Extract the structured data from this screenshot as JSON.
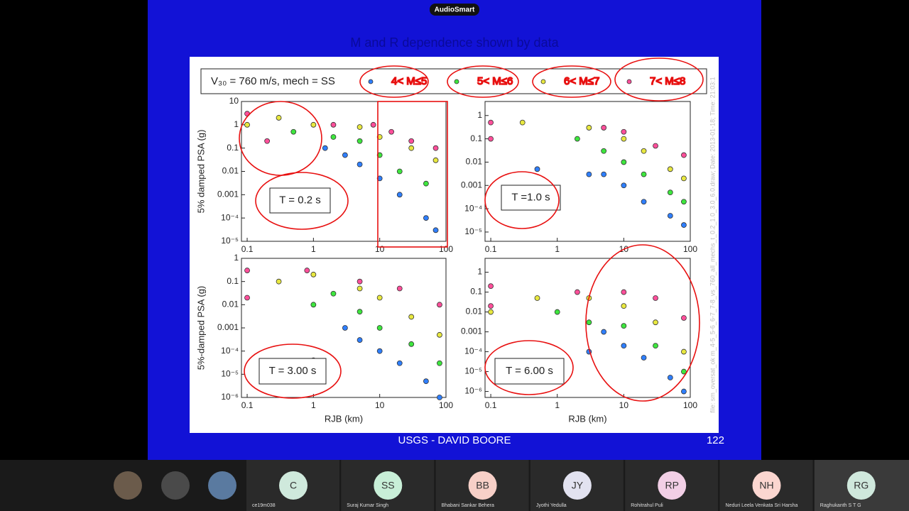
{
  "badge": "AudioSmart",
  "slide": {
    "title": "M and R dependence shown by data",
    "legend": {
      "title": "V₃₀ = 760 m/s, mech = SS",
      "entries": [
        "4< M≤5",
        "5< M≤6",
        "6< M≤7",
        "7< M≤8"
      ]
    },
    "side_note": "file: sm_oversat_ok m_4-5_5-6_6-7_7-8_vs_760_all_mechs_t_0.2_1.0_3.0_6.0.draw; Date: 2013-01-18; Time: 21:03:1",
    "footer": "USGS - DAVID BOORE",
    "page_number": "122"
  },
  "chart_data": [
    {
      "type": "scatter",
      "label": "T = 0.2 s",
      "ylabel": "5% damped PSA (g)",
      "log": true,
      "xlim": [
        0.082,
        100
      ],
      "xticks": [
        0.1,
        1,
        10,
        100
      ],
      "ylim": [
        1e-05,
        10
      ],
      "yticks": [
        10,
        1,
        0.1,
        0.01,
        0.001,
        {
          "value": 0.0001,
          "label": "10⁻⁴"
        },
        {
          "value": 1e-05,
          "label": "10⁻⁵"
        }
      ],
      "series": [
        {
          "color": "#2f7fff",
          "x": [
            1.5,
            3,
            5,
            10,
            20,
            50,
            70
          ],
          "values": [
            0.1,
            0.05,
            0.02,
            0.005,
            0.001,
            0.0001,
            3e-05
          ]
        },
        {
          "color": "#3ee63e",
          "x": [
            0.5,
            2,
            5,
            10,
            20,
            50
          ],
          "values": [
            0.5,
            0.3,
            0.2,
            0.05,
            0.01,
            0.003
          ]
        },
        {
          "color": "#e8e840",
          "x": [
            0.1,
            0.3,
            1,
            5,
            10,
            30,
            70
          ],
          "values": [
            1,
            2,
            1,
            0.8,
            0.3,
            0.1,
            0.03
          ]
        },
        {
          "color": "#ff4f9a",
          "x": [
            0.1,
            0.2,
            2,
            8,
            15,
            30,
            70
          ],
          "values": [
            3,
            0.2,
            1,
            1,
            0.5,
            0.2,
            0.1
          ]
        }
      ]
    },
    {
      "type": "scatter",
      "label": "T =1.0 s",
      "log": true,
      "xlim": [
        0.082,
        100
      ],
      "xticks": [
        0.1,
        1,
        10,
        100
      ],
      "ylim": [
        4e-06,
        4
      ],
      "yticks": [
        1,
        0.1,
        0.01,
        0.001,
        {
          "value": 0.0001,
          "label": "10⁻⁴"
        },
        {
          "value": 1e-05,
          "label": "10⁻⁵"
        }
      ],
      "series": [
        {
          "color": "#2f7fff",
          "x": [
            0.5,
            3,
            5,
            10,
            20,
            50,
            80
          ],
          "values": [
            0.005,
            0.003,
            0.003,
            0.001,
            0.0002,
            5e-05,
            2e-05
          ]
        },
        {
          "color": "#3ee63e",
          "x": [
            2,
            5,
            10,
            20,
            50,
            80
          ],
          "values": [
            0.1,
            0.03,
            0.01,
            0.003,
            0.0005,
            0.0002
          ]
        },
        {
          "color": "#e8e840",
          "x": [
            0.3,
            3,
            10,
            20,
            50,
            80
          ],
          "values": [
            0.5,
            0.3,
            0.1,
            0.03,
            0.005,
            0.002
          ]
        },
        {
          "color": "#ff4f9a",
          "x": [
            0.1,
            0.1,
            5,
            10,
            30,
            80
          ],
          "values": [
            0.5,
            0.1,
            0.3,
            0.2,
            0.05,
            0.02
          ]
        }
      ]
    },
    {
      "type": "scatter",
      "label": "T = 3.00 s",
      "ylabel": "5%-damped PSA (g)",
      "xlabel": "RJB (km)",
      "log": true,
      "xlim": [
        0.082,
        100
      ],
      "xticks": [
        0.1,
        1,
        10,
        100
      ],
      "ylim": [
        1e-06,
        1
      ],
      "yticks": [
        1,
        0.1,
        0.01,
        0.001,
        {
          "value": 0.0001,
          "label": "10⁻⁴"
        },
        {
          "value": 1e-05,
          "label": "10⁻⁵"
        },
        {
          "value": 1e-06,
          "label": "10⁻⁶"
        }
      ],
      "series": [
        {
          "color": "#2f7fff",
          "x": [
            1,
            3,
            5,
            10,
            20,
            50,
            80
          ],
          "values": [
            4e-05,
            0.001,
            0.0003,
            0.0001,
            3e-05,
            5e-06,
            1e-06
          ]
        },
        {
          "color": "#3ee63e",
          "x": [
            1,
            2,
            5,
            10,
            30,
            80
          ],
          "values": [
            0.01,
            0.03,
            0.005,
            0.001,
            0.0002,
            3e-05
          ]
        },
        {
          "color": "#e8e840",
          "x": [
            0.3,
            1,
            5,
            10,
            30,
            80
          ],
          "values": [
            0.1,
            0.2,
            0.05,
            0.02,
            0.003,
            0.0005
          ]
        },
        {
          "color": "#ff4f9a",
          "x": [
            0.1,
            0.1,
            0.8,
            5,
            20,
            80
          ],
          "values": [
            0.3,
            0.02,
            0.3,
            0.1,
            0.05,
            0.01
          ]
        }
      ]
    },
    {
      "type": "scatter",
      "label": "T = 6.00 s",
      "xlabel": "RJB (km)",
      "log": true,
      "xlim": [
        0.082,
        100
      ],
      "xticks": [
        0.1,
        1,
        10,
        100
      ],
      "ylim": [
        5e-07,
        5
      ],
      "yticks": [
        1,
        0.1,
        0.01,
        0.001,
        {
          "value": 0.0001,
          "label": "10⁻⁴"
        },
        {
          "value": 1e-05,
          "label": "10⁻⁵"
        },
        {
          "value": 1e-06,
          "label": "10⁻⁶"
        }
      ],
      "series": [
        {
          "color": "#2f7fff",
          "x": [
            3,
            5,
            10,
            20,
            50,
            80
          ],
          "values": [
            0.0001,
            0.001,
            0.0002,
            5e-05,
            5e-06,
            1e-06
          ]
        },
        {
          "color": "#3ee63e",
          "x": [
            1,
            3,
            10,
            30,
            80
          ],
          "values": [
            0.01,
            0.003,
            0.002,
            0.0002,
            1e-05
          ]
        },
        {
          "color": "#e8e840",
          "x": [
            0.1,
            0.5,
            3,
            10,
            30,
            80
          ],
          "values": [
            0.01,
            0.05,
            0.05,
            0.02,
            0.003,
            0.0001
          ]
        },
        {
          "color": "#ff4f9a",
          "x": [
            0.1,
            0.1,
            2,
            10,
            30,
            80
          ],
          "values": [
            0.2,
            0.02,
            0.1,
            0.1,
            0.05,
            0.005
          ]
        }
      ]
    }
  ],
  "participants": [
    {
      "initials": "C",
      "name": "ce19m038"
    },
    {
      "initials": "SS",
      "name": "Suraj Kumar Singh"
    },
    {
      "initials": "BB",
      "name": "Bhabani Sankar Behera"
    },
    {
      "initials": "JY",
      "name": "Jyothi Yedulla"
    },
    {
      "initials": "RP",
      "name": "Rohitrahul Puli"
    },
    {
      "initials": "NH",
      "name": "Neduri Leela Venkata Sri Harsha"
    },
    {
      "initials": "RG",
      "name": "Raghukanth S T G"
    }
  ]
}
